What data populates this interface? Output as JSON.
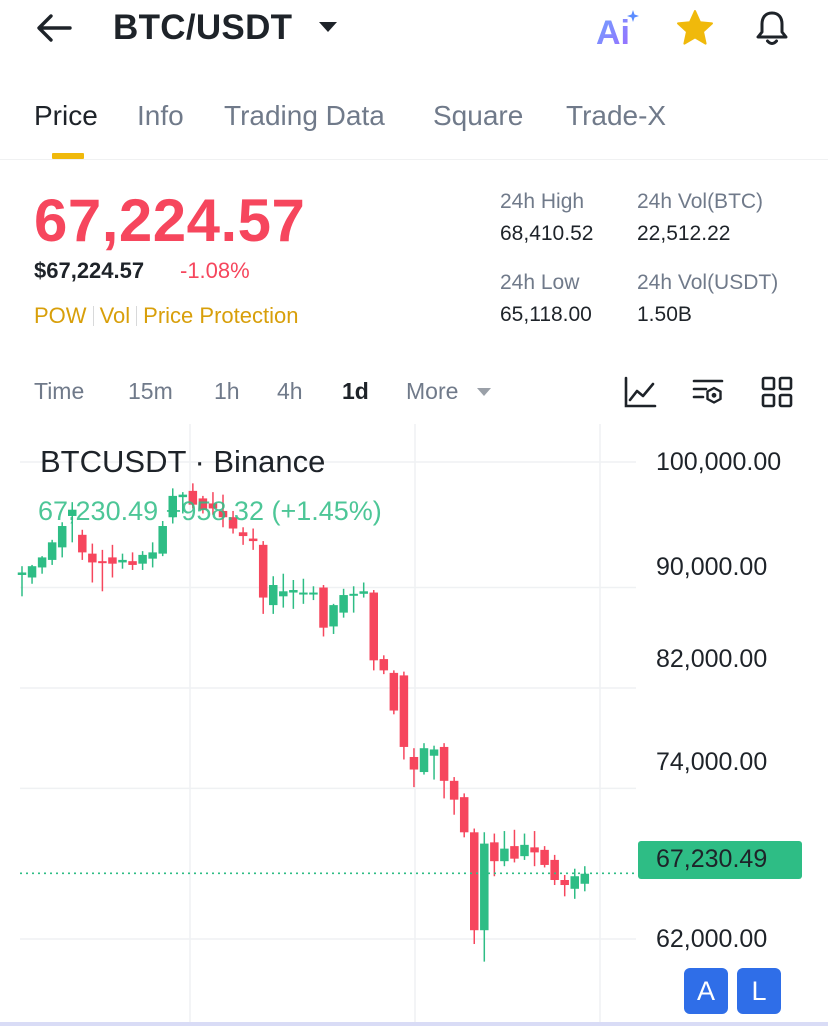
{
  "header": {
    "pair": "BTC/USDT",
    "icons": [
      "back-arrow-icon",
      "caret-down-icon",
      "ai-icon",
      "star-icon",
      "bell-icon"
    ],
    "ai_label": "Ai",
    "favorited": true
  },
  "tabs": [
    {
      "label": "Price",
      "active": true
    },
    {
      "label": "Info",
      "active": false
    },
    {
      "label": "Trading Data",
      "active": false
    },
    {
      "label": "Square",
      "active": false
    },
    {
      "label": "Trade-X",
      "active": false
    }
  ],
  "price": {
    "last": "67,224.57",
    "usd": "$67,224.57",
    "change": "-1.08%",
    "tags": [
      "POW",
      "Vol",
      "Price Protection"
    ]
  },
  "stats": {
    "high_label": "24h High",
    "high_value": "68,410.52",
    "vol_btc_label": "24h Vol(BTC)",
    "vol_btc_value": "22,512.22",
    "low_label": "24h Low",
    "low_value": "65,118.00",
    "vol_usdt_label": "24h Vol(USDT)",
    "vol_usdt_value": "1.50B"
  },
  "intervals": {
    "items": [
      "Time",
      "15m",
      "1h",
      "4h",
      "1d",
      "More"
    ],
    "active": "1d",
    "tool_icons": [
      "indicator-chart-icon",
      "chart-settings-icon",
      "grid-layout-icon"
    ]
  },
  "chart": {
    "title": "BTCUSDT · Binance",
    "legend": "67,230.49 +958.32 (+1.45%)",
    "y_labels": [
      "100,000.00",
      "90,000.00",
      "82,000.00",
      "74,000.00",
      "62,000.00"
    ],
    "current_price": "67,230.49",
    "buttons": [
      "A",
      "L"
    ]
  },
  "colors": {
    "up": "#2ebd85",
    "down": "#f6465d",
    "accent": "#f0b90b",
    "tag": "#d89f0a",
    "button": "#2f6ee8"
  },
  "chart_data": {
    "type": "candlestick",
    "title": "BTCUSDT · Binance",
    "y_ticks": [
      100000,
      90000,
      82000,
      74000,
      62000
    ],
    "last_price": 67230.49,
    "candles": [
      {
        "o": 91000,
        "h": 91700,
        "l": 89300,
        "c": 91200
      },
      {
        "o": 90800,
        "h": 91800,
        "l": 90300,
        "c": 91700
      },
      {
        "o": 91600,
        "h": 92500,
        "l": 91100,
        "c": 92400
      },
      {
        "o": 92200,
        "h": 93800,
        "l": 91800,
        "c": 93600
      },
      {
        "o": 93200,
        "h": 95200,
        "l": 92400,
        "c": 94900
      },
      {
        "o": 95700,
        "h": 96800,
        "l": 93600,
        "c": 96200
      },
      {
        "o": 94200,
        "h": 94600,
        "l": 92200,
        "c": 92800
      },
      {
        "o": 92700,
        "h": 93500,
        "l": 90400,
        "c": 92000
      },
      {
        "o": 92100,
        "h": 93000,
        "l": 89700,
        "c": 92000
      },
      {
        "o": 92400,
        "h": 93400,
        "l": 90800,
        "c": 91900
      },
      {
        "o": 92000,
        "h": 92700,
        "l": 91500,
        "c": 92200
      },
      {
        "o": 92100,
        "h": 92800,
        "l": 91400,
        "c": 91800
      },
      {
        "o": 91900,
        "h": 92900,
        "l": 91400,
        "c": 92600
      },
      {
        "o": 92300,
        "h": 93600,
        "l": 91600,
        "c": 92800
      },
      {
        "o": 92700,
        "h": 95300,
        "l": 92500,
        "c": 94900
      },
      {
        "o": 95600,
        "h": 97900,
        "l": 95100,
        "c": 97300
      },
      {
        "o": 97200,
        "h": 97600,
        "l": 95900,
        "c": 97400
      },
      {
        "o": 97700,
        "h": 98300,
        "l": 96300,
        "c": 96600
      },
      {
        "o": 97100,
        "h": 97300,
        "l": 95900,
        "c": 96200
      },
      {
        "o": 96700,
        "h": 97600,
        "l": 95800,
        "c": 96300
      },
      {
        "o": 96100,
        "h": 97400,
        "l": 94800,
        "c": 95600
      },
      {
        "o": 95600,
        "h": 96100,
        "l": 94300,
        "c": 94700
      },
      {
        "o": 94400,
        "h": 94800,
        "l": 93400,
        "c": 94100
      },
      {
        "o": 93900,
        "h": 94700,
        "l": 93000,
        "c": 93700
      },
      {
        "o": 93400,
        "h": 93700,
        "l": 87900,
        "c": 89200
      },
      {
        "o": 88600,
        "h": 90900,
        "l": 87900,
        "c": 90200
      },
      {
        "o": 89300,
        "h": 91100,
        "l": 88400,
        "c": 89700
      },
      {
        "o": 89600,
        "h": 90600,
        "l": 88300,
        "c": 89800
      },
      {
        "o": 89500,
        "h": 90700,
        "l": 88700,
        "c": 89600
      },
      {
        "o": 89600,
        "h": 90100,
        "l": 89000,
        "c": 89600
      },
      {
        "o": 90000,
        "h": 90200,
        "l": 86100,
        "c": 86800
      },
      {
        "o": 86900,
        "h": 88700,
        "l": 86300,
        "c": 88600
      },
      {
        "o": 88000,
        "h": 89900,
        "l": 87600,
        "c": 89400
      },
      {
        "o": 89400,
        "h": 90100,
        "l": 88000,
        "c": 89500
      },
      {
        "o": 89500,
        "h": 90400,
        "l": 89200,
        "c": 89700
      },
      {
        "o": 89600,
        "h": 89800,
        "l": 83400,
        "c": 84200
      },
      {
        "o": 84300,
        "h": 84600,
        "l": 83100,
        "c": 83400
      },
      {
        "o": 83200,
        "h": 83400,
        "l": 79900,
        "c": 80200
      },
      {
        "o": 83000,
        "h": 83300,
        "l": 76300,
        "c": 77300
      },
      {
        "o": 76500,
        "h": 77200,
        "l": 74100,
        "c": 75500
      },
      {
        "o": 75300,
        "h": 77600,
        "l": 75100,
        "c": 77200
      },
      {
        "o": 76600,
        "h": 77400,
        "l": 74700,
        "c": 77100
      },
      {
        "o": 77300,
        "h": 77600,
        "l": 73200,
        "c": 74600
      },
      {
        "o": 74600,
        "h": 74900,
        "l": 71900,
        "c": 73100
      },
      {
        "o": 73300,
        "h": 73600,
        "l": 70100,
        "c": 70500
      },
      {
        "o": 70500,
        "h": 70800,
        "l": 61600,
        "c": 62700
      },
      {
        "o": 62700,
        "h": 70500,
        "l": 60200,
        "c": 69600
      },
      {
        "o": 69700,
        "h": 70400,
        "l": 67000,
        "c": 68200
      },
      {
        "o": 68200,
        "h": 70600,
        "l": 67800,
        "c": 69200
      },
      {
        "o": 69400,
        "h": 70700,
        "l": 68100,
        "c": 68400
      },
      {
        "o": 68600,
        "h": 70400,
        "l": 68300,
        "c": 69500
      },
      {
        "o": 69300,
        "h": 70600,
        "l": 67800,
        "c": 68900
      },
      {
        "o": 69100,
        "h": 69400,
        "l": 67700,
        "c": 67900
      },
      {
        "o": 68300,
        "h": 68700,
        "l": 66300,
        "c": 66700
      },
      {
        "o": 66700,
        "h": 67100,
        "l": 65400,
        "c": 66300
      },
      {
        "o": 66000,
        "h": 67600,
        "l": 65200,
        "c": 67000
      },
      {
        "o": 66400,
        "h": 67800,
        "l": 65800,
        "c": 67200
      }
    ]
  }
}
